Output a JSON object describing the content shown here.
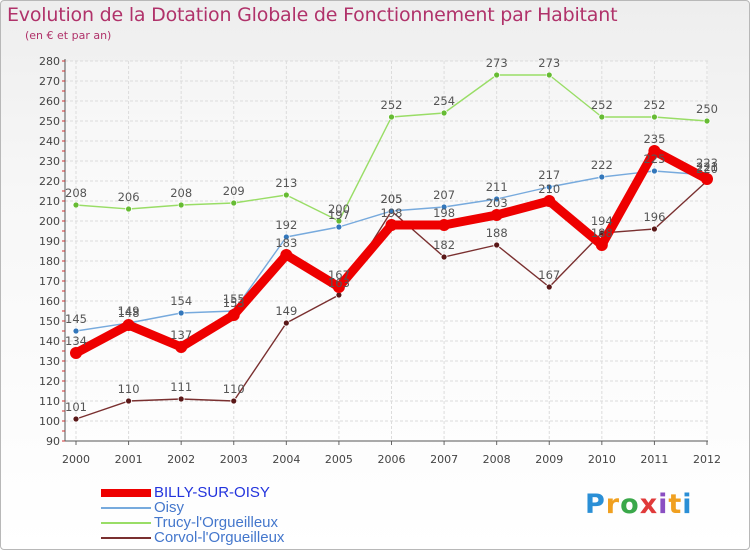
{
  "title": "Evolution de la Dotation Globale de Fonctionnement par Habitant",
  "subtitle": "(en € et par an)",
  "brand": {
    "letters": [
      "P",
      "r",
      "o",
      "x",
      "i",
      "t",
      "i"
    ],
    "colors": [
      "#2a8fd6",
      "#f0a020",
      "#3aa84a",
      "#e03a3a",
      "#8a4fc2",
      "#f0a020",
      "#2a8fd6"
    ]
  },
  "chart_data": {
    "type": "line",
    "title": "Evolution de la Dotation Globale de Fonctionnement par Habitant",
    "subtitle": "(en € et par an)",
    "x": [
      "2000",
      "2001",
      "2002",
      "2003",
      "2004",
      "2005",
      "2006",
      "2007",
      "2008",
      "2009",
      "2010",
      "2011",
      "2012"
    ],
    "ylim": [
      90,
      280
    ],
    "yticks": [
      90,
      100,
      110,
      120,
      130,
      140,
      150,
      160,
      170,
      180,
      190,
      200,
      210,
      220,
      230,
      240,
      250,
      260,
      270,
      280
    ],
    "grid": true,
    "legend_position": "bottom-left",
    "series": [
      {
        "name": "Trucy-l'Orgueilleux",
        "color": "#99dd66",
        "marker": "#66bb33",
        "label_color": "#555555",
        "values": [
          208,
          206,
          208,
          209,
          213,
          200,
          252,
          254,
          273,
          273,
          252,
          252,
          250
        ]
      },
      {
        "name": "Corvol-l'Orgueilleux",
        "color": "#7a3030",
        "marker": "#5a1818",
        "label_color": "#555555",
        "values": [
          101,
          110,
          111,
          110,
          149,
          163,
          205,
          182,
          188,
          167,
          194,
          196,
          220
        ]
      },
      {
        "name": "Oisy",
        "color": "#77aadd",
        "marker": "#3377bb",
        "label_color": "#555555",
        "values": [
          145,
          149,
          154,
          155,
          192,
          197,
          205,
          207,
          211,
          217,
          222,
          225,
          223
        ]
      },
      {
        "name": "BILLY-SUR-OISY",
        "color": "#ee0000",
        "marker": "#ee0000",
        "label_color": "#555555",
        "values": [
          134,
          148,
          137,
          153,
          183,
          167,
          198,
          198,
          203,
          210,
          188,
          235,
          221
        ]
      }
    ],
    "legend_order": [
      "BILLY-SUR-OISY",
      "Oisy",
      "Trucy-l'Orgueilleux",
      "Corvol-l'Orgueilleux"
    ],
    "legend_colors": [
      "#2233dd",
      "#4477cc",
      "#4477cc",
      "#4477cc"
    ]
  }
}
